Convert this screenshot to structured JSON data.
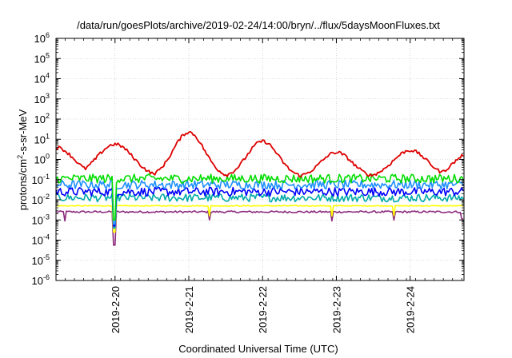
{
  "chart_data": {
    "type": "line",
    "title": "/data/run/goesPlots/archive/2019-02-24/14:00/bryn/../flux/5daysMoonFluxes.txt",
    "xlabel": "Coordinated Universal Time (UTC)",
    "ylabel_parts": {
      "pre": "protons/cm",
      "sup": "2",
      "post": "-s-sr-MeV"
    },
    "yscale": "log",
    "ylim_exp": [
      -6,
      6
    ],
    "y_tick_base": "10",
    "y_tick_exps": [
      "-6",
      "-5",
      "-4",
      "-3",
      "-2",
      "-1",
      "0",
      "1",
      "2",
      "3",
      "4",
      "5",
      "6"
    ],
    "xlim_days": [
      0,
      5.53
    ],
    "x_ticks": [
      {
        "label": "2019-2-20",
        "day": 0.8
      },
      {
        "label": "2019-2-21",
        "day": 1.8
      },
      {
        "label": "2019-2-22",
        "day": 2.8
      },
      {
        "label": "2019-2-23",
        "day": 3.8
      },
      {
        "label": "2019-2-24",
        "day": 4.8
      }
    ],
    "grid": true,
    "legend": "none",
    "series": [
      {
        "color": "#8b2a7c",
        "kind": "base",
        "log_level": -2.6,
        "noise": 0.05,
        "dips": [
          [
            0.79,
            -4.25
          ],
          [
            0.12,
            -3.05
          ],
          [
            2.08,
            -3.0
          ],
          [
            3.74,
            -3.05
          ],
          [
            4.58,
            -3.0
          ],
          [
            5.51,
            -2.95
          ]
        ]
      },
      {
        "color": "#ffff00",
        "kind": "base",
        "log_level": -2.3,
        "noise": 0.02,
        "dips": [
          [
            0.79,
            -3.6
          ],
          [
            2.08,
            -2.8
          ],
          [
            3.74,
            -2.8
          ],
          [
            4.58,
            -2.8
          ]
        ]
      },
      {
        "color": "#00aaaa",
        "kind": "base",
        "log_level": -1.9,
        "noise": 0.2,
        "dips": [
          [
            0.79,
            -3.4
          ]
        ]
      },
      {
        "color": "#0000ff",
        "kind": "base",
        "log_level": -1.6,
        "noise": 0.22,
        "dips": [
          [
            0.79,
            -3.3
          ]
        ]
      },
      {
        "color": "#1e90ff",
        "kind": "base",
        "log_level": -1.25,
        "noise": 0.22,
        "dips": [
          [
            0.79,
            -3.2
          ]
        ]
      },
      {
        "color": "#00dd00",
        "kind": "base",
        "log_level": -0.95,
        "noise": 0.22,
        "dips": [
          [
            0.79,
            -3.0
          ]
        ]
      },
      {
        "color": "#dd0000",
        "kind": "peaks",
        "base_log": -0.9,
        "peaks": [
          [
            0.0,
            0.6,
            0.35
          ],
          [
            0.8,
            0.75,
            0.35
          ],
          [
            1.8,
            1.35,
            0.3
          ],
          [
            2.8,
            0.9,
            0.3
          ],
          [
            3.8,
            0.35,
            0.3
          ],
          [
            4.8,
            0.45,
            0.33
          ],
          [
            5.6,
            0.3,
            0.3
          ]
        ],
        "noise": 0.08
      }
    ]
  }
}
